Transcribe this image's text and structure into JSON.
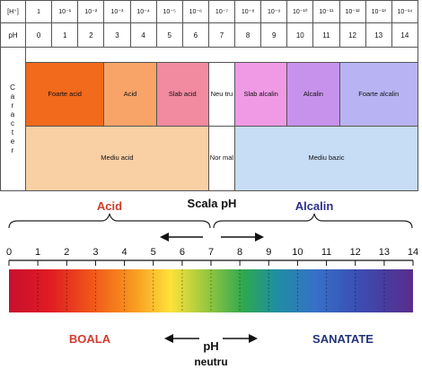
{
  "table": {
    "h_label": "[H⁺]",
    "h_values": [
      "1",
      "10⁻¹",
      "10⁻²",
      "10⁻³",
      "10⁻⁴",
      "10⁻⁵",
      "10⁻⁶",
      "10⁻⁷",
      "10⁻⁸",
      "10⁻⁹",
      "10⁻¹⁰",
      "10⁻¹¹",
      "10⁻¹²",
      "10⁻¹³",
      "10⁻¹⁴"
    ],
    "ph_label": "pH",
    "ph_values": [
      "0",
      "1",
      "2",
      "3",
      "4",
      "5",
      "6",
      "7",
      "8",
      "9",
      "10",
      "11",
      "12",
      "13",
      "14"
    ],
    "side_label_letters": [
      "C",
      "a",
      "r",
      "a",
      "c",
      "t",
      "e",
      "r"
    ],
    "character": [
      {
        "label": "Foarte acid",
        "color": "#f26a1b"
      },
      {
        "label": "Acid",
        "color": "#f8a468"
      },
      {
        "label": "Slab acid",
        "color": "#f28aa0"
      },
      {
        "label": "Neu tru",
        "color": "#fff"
      },
      {
        "label": "Slab alcalin",
        "color": "#f09ae6"
      },
      {
        "label": "Alcalin",
        "color": "#c792ec"
      },
      {
        "label": "Foarte alcalin",
        "color": "#b8b4f4"
      }
    ],
    "medium": [
      {
        "label": "Mediu acid",
        "color": "#f9cfa4"
      },
      {
        "label": "Nor mal",
        "color": "#fff"
      },
      {
        "label": "Mediu bazic",
        "color": "#c7dcf5"
      }
    ]
  },
  "scale": {
    "acid_label": "Acid",
    "title": "Scala pH",
    "alcalin_label": "Alcalin",
    "numbers": [
      "0",
      "1",
      "2",
      "3",
      "4",
      "5",
      "6",
      "7",
      "8",
      "9",
      "10",
      "11",
      "12",
      "13",
      "14"
    ],
    "boala": "BOALA",
    "ph_neutral_line1": "pH",
    "ph_neutral_line2": "neutru",
    "sanatate": "SANATATE",
    "colors": {
      "acid": "#d23a2a",
      "alcalin": "#2e2e8c",
      "boala": "#d63b2f",
      "sanatate": "#23347a"
    }
  }
}
